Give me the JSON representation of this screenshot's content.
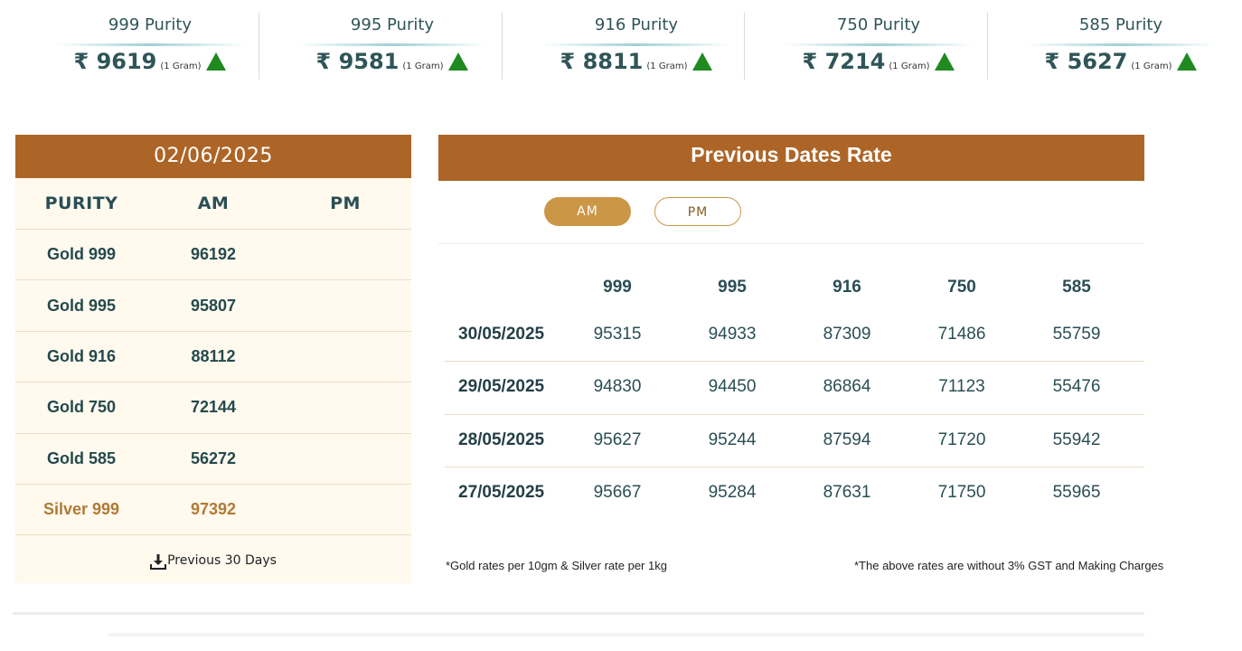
{
  "ticker": [
    {
      "label": "999 Purity",
      "price": "₹ 9619",
      "unit": "(1 Gram)"
    },
    {
      "label": "995 Purity",
      "price": "₹ 9581",
      "unit": "(1 Gram)"
    },
    {
      "label": "916 Purity",
      "price": "₹ 8811",
      "unit": "(1 Gram)"
    },
    {
      "label": "750 Purity",
      "price": "₹ 7214",
      "unit": "(1 Gram)"
    },
    {
      "label": "585 Purity",
      "price": "₹ 5627",
      "unit": "(1 Gram)"
    }
  ],
  "today": {
    "date": "02/06/2025",
    "headers": [
      "PURITY",
      "AM",
      "PM"
    ],
    "rows": [
      {
        "purity": "Gold 999",
        "am": "96192",
        "pm": ""
      },
      {
        "purity": "Gold 995",
        "am": "95807",
        "pm": ""
      },
      {
        "purity": "Gold 916",
        "am": "88112",
        "pm": ""
      },
      {
        "purity": "Gold 750",
        "am": "72144",
        "pm": ""
      },
      {
        "purity": "Gold 585",
        "am": "56272",
        "pm": ""
      },
      {
        "purity": "Silver 999",
        "am": "97392",
        "pm": ""
      }
    ],
    "previous_link": "Previous 30 Days"
  },
  "previous": {
    "title": "Previous Dates Rate",
    "toggle": {
      "am": "AM",
      "pm": "PM",
      "active": "AM"
    },
    "headers": [
      "999",
      "995",
      "916",
      "750",
      "585"
    ],
    "rows": [
      {
        "date": "30/05/2025",
        "values": [
          "95315",
          "94933",
          "87309",
          "71486",
          "55759"
        ]
      },
      {
        "date": "29/05/2025",
        "values": [
          "94830",
          "94450",
          "86864",
          "71123",
          "55476"
        ]
      },
      {
        "date": "28/05/2025",
        "values": [
          "95627",
          "95244",
          "87594",
          "71720",
          "55942"
        ]
      },
      {
        "date": "27/05/2025",
        "values": [
          "95667",
          "95284",
          "87631",
          "71750",
          "55965"
        ]
      }
    ],
    "note_left": "*Gold rates per 10gm & Silver rate per 1kg",
    "note_right": "*The above rates are without 3% GST and Making Charges"
  },
  "colors": {
    "accent": "#ad6527",
    "pill": "#cc9647",
    "up": "#1f8a1f",
    "text": "#2a4e55"
  }
}
